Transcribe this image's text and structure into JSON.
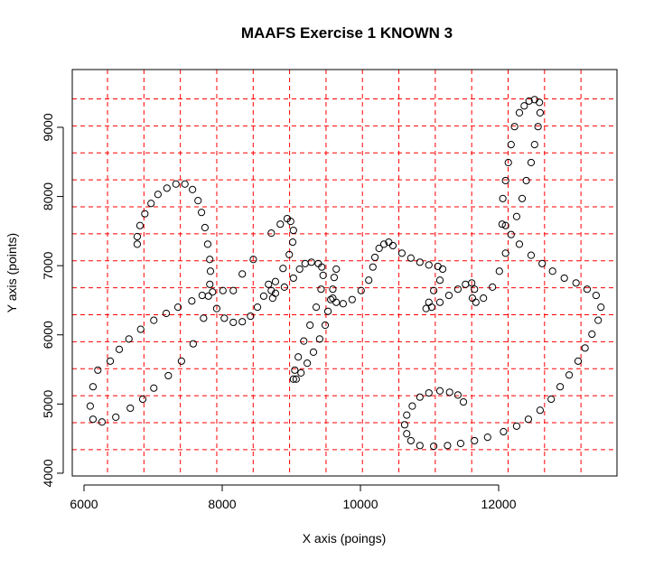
{
  "chart_data": {
    "type": "scatter",
    "title": "MAAFS Exercise 1 KNOWN 3",
    "x_label": "X axis (poings)",
    "y_label": "Y axis (points)",
    "xlim": [
      5830,
      13712
    ],
    "ylim": [
      3960,
      9835
    ],
    "xticks": [
      6000,
      8000,
      10000,
      12000
    ],
    "yticks": [
      4000,
      5000,
      6000,
      7000,
      8000,
      9000
    ],
    "grid": true,
    "grid_color": "#ff0000",
    "xgrid": [
      6340,
      6867,
      7394,
      7921,
      8448,
      8975,
      9502,
      10029,
      10556,
      11083,
      11610,
      12137,
      12664,
      13191
    ],
    "ygrid": [
      4340,
      4730,
      5120,
      5510,
      5900,
      6290,
      6680,
      7070,
      7460,
      7850,
      8240,
      8630,
      9020,
      9410
    ],
    "color": "#000000",
    "x": [
      6770,
      6770,
      6810,
      6880,
      6970,
      7070,
      7200,
      7330,
      7460,
      7570,
      7650,
      7700,
      7750,
      7790,
      7820,
      7830,
      7820,
      7800,
      7730,
      7580,
      7410,
      7220,
      7010,
      6850,
      6670,
      6460,
      6260,
      6130,
      6090,
      6130,
      6200,
      6380,
      6510,
      6650,
      6820,
      7010,
      7190,
      7360,
      7560,
      7710,
      7860,
      8010,
      8160,
      7920,
      8030,
      8160,
      8290,
      8410,
      8510,
      8600,
      8670,
      8290,
      8450,
      8710,
      8840,
      8940,
      8990,
      9030,
      9020,
      8970,
      8880,
      8770,
      8710,
      8730,
      8770,
      8900,
      9030,
      9120,
      9200,
      9290,
      9390,
      9440,
      9460,
      9430,
      9360,
      9270,
      9180,
      9100,
      9050,
      9030,
      9070,
      9140,
      9230,
      9320,
      9410,
      9490,
      9530,
      9570,
      9600,
      9620,
      9650,
      9600,
      9650,
      9750,
      9880,
      10010,
      10120,
      10180,
      10210,
      10270,
      10340,
      10410,
      10470,
      10600,
      10730,
      10860,
      10990,
      11120,
      11190,
      11150,
      11060,
      10990,
      10950,
      11030,
      11150,
      11280,
      11410,
      11520,
      11610,
      11650,
      11620,
      11670,
      11780,
      11910,
      12010,
      12100,
      12180,
      12260,
      12340,
      12400,
      12470,
      12520,
      12570,
      12600,
      12590,
      12520,
      12440,
      12370,
      12300,
      12230,
      12180,
      12140,
      12100,
      12060,
      12050,
      12100,
      12300,
      12470,
      12630,
      12780,
      12950,
      13120,
      13280,
      13410,
      13480,
      13440,
      13350,
      13250,
      13150,
      13020,
      12890,
      12760,
      12600,
      12430,
      12260,
      12070,
      11840,
      11650,
      11450,
      11260,
      11060,
      10860,
      10730,
      10670,
      10640,
      10670,
      10750,
      10860,
      10990,
      11150,
      11290,
      11410,
      11490
    ],
    "y": [
      7310,
      7420,
      7580,
      7750,
      7900,
      8030,
      8120,
      8180,
      8180,
      8100,
      7940,
      7770,
      7550,
      7310,
      7090,
      6920,
      6730,
      6560,
      6240,
      5870,
      5620,
      5410,
      5230,
      5070,
      4940,
      4810,
      4740,
      4780,
      4970,
      5250,
      5490,
      5620,
      5790,
      5940,
      6080,
      6210,
      6310,
      6400,
      6490,
      6570,
      6620,
      6640,
      6640,
      6380,
      6240,
      6180,
      6190,
      6270,
      6400,
      6560,
      6730,
      6880,
      7090,
      7470,
      7600,
      7680,
      7640,
      7510,
      7340,
      7160,
      6960,
      6770,
      6640,
      6530,
      6600,
      6690,
      6820,
      6950,
      7030,
      7050,
      7030,
      6980,
      6860,
      6660,
      6400,
      6140,
      5910,
      5680,
      5490,
      5360,
      5360,
      5450,
      5590,
      5750,
      5940,
      6140,
      6340,
      6510,
      6660,
      6830,
      6950,
      6530,
      6470,
      6450,
      6510,
      6640,
      6790,
      6980,
      7120,
      7250,
      7310,
      7340,
      7290,
      7180,
      7110,
      7050,
      7010,
      6990,
      6950,
      6790,
      6640,
      6470,
      6380,
      6400,
      6470,
      6570,
      6660,
      6730,
      6750,
      6660,
      6530,
      6470,
      6530,
      6690,
      6920,
      7180,
      7450,
      7710,
      7970,
      8230,
      8490,
      8750,
      9010,
      9210,
      9360,
      9400,
      9380,
      9310,
      9210,
      9010,
      8750,
      8490,
      8230,
      7970,
      7600,
      7580,
      7310,
      7150,
      7030,
      6920,
      6820,
      6750,
      6660,
      6570,
      6400,
      6210,
      6010,
      5810,
      5620,
      5420,
      5250,
      5070,
      4910,
      4780,
      4680,
      4600,
      4520,
      4470,
      4430,
      4400,
      4390,
      4400,
      4470,
      4570,
      4700,
      4840,
      4970,
      5100,
      5160,
      5190,
      5170,
      5130,
      5030
    ]
  }
}
